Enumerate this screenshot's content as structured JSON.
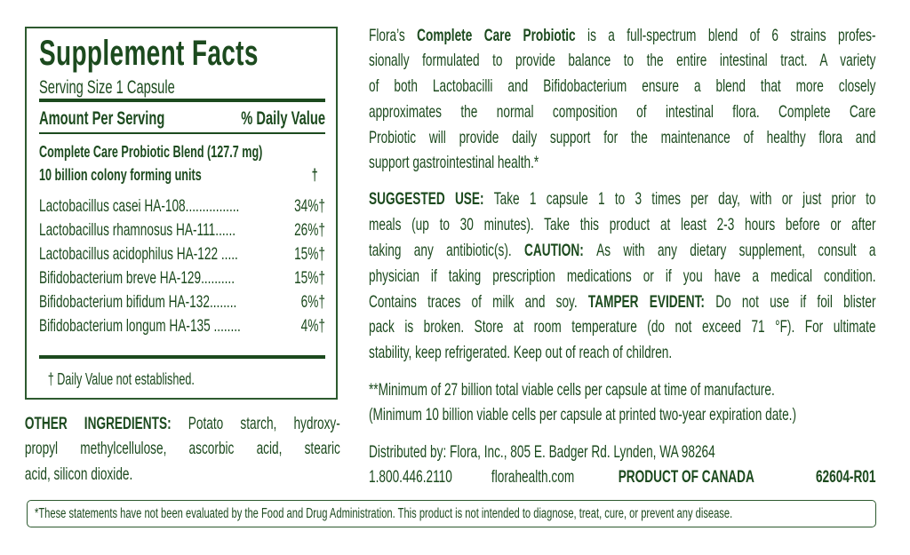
{
  "colors": {
    "text": "#1c4a1e",
    "border": "#2d5a2f"
  },
  "facts": {
    "title": "Supplement Facts",
    "serving_size": "Serving Size 1 Capsule",
    "amount_header": "Amount Per Serving",
    "dv_header": "% Daily Value",
    "blend_name": "Complete Care Probiotic Blend (127.7 mg)",
    "blend_units": "10 billion colony forming units",
    "blend_dv": "†",
    "strains": [
      {
        "name": "Lactobacillus casei HA-108................",
        "dv": "34%†"
      },
      {
        "name": "Lactobacillus rhamnosus HA-111......",
        "dv": "26%†"
      },
      {
        "name": "Lactobacillus acidophilus HA-122 .....",
        "dv": "15%†"
      },
      {
        "name": "Bifidobacterium breve HA-129..........",
        "dv": "15%†"
      },
      {
        "name": "Bifidobacterium bifidum HA-132........",
        "dv": "6%†"
      },
      {
        "name": "Bifidobacterium longum HA-135 ........",
        "dv": "4%†"
      }
    ],
    "footnote": "† Daily Value not established."
  },
  "other_ingredients": [
    [
      {
        "b": true,
        "t": "OTHER INGREDIENTS: "
      },
      {
        "t": "Potato starch, hydroxy-"
      }
    ],
    [
      {
        "t": "propyl methylcellulose, ascorbic acid, stearic"
      }
    ],
    [
      {
        "t": "acid, silicon dioxide."
      }
    ]
  ],
  "description": [
    [
      {
        "t": "Flora’s "
      },
      {
        "b": true,
        "t": "Complete Care Probiotic"
      },
      {
        "t": " is a full-spectrum blend of 6 strains profes-"
      }
    ],
    [
      {
        "t": "sionally formulated to provide balance to the entire intestinal tract. A variety"
      }
    ],
    [
      {
        "t": "of both Lactobacilli and Bifidobacterium ensure a blend that more closely"
      }
    ],
    [
      {
        "t": "approximates the normal composition of intestinal flora. Complete Care"
      }
    ],
    [
      {
        "t": "Probiotic will provide daily support for the maintenance of healthy flora and"
      }
    ],
    [
      {
        "t": "support gastrointestinal health.*"
      }
    ]
  ],
  "usage": [
    [
      {
        "b": true,
        "t": "SUGGESTED USE: "
      },
      {
        "t": "Take 1 capsule 1 to 3 times per day, with or just prior to"
      }
    ],
    [
      {
        "t": "meals (up to 30 minutes). Take this product at least 2-3 hours before or after"
      }
    ],
    [
      {
        "t": "taking any antibiotic(s). "
      },
      {
        "b": true,
        "t": "CAUTION: "
      },
      {
        "t": "As with any dietary supplement, consult a"
      }
    ],
    [
      {
        "t": "physician if taking prescription medications or if you have a medical condition."
      }
    ],
    [
      {
        "t": "Contains traces of milk and soy.  "
      },
      {
        "b": true,
        "t": "TAMPER EVIDENT: "
      },
      {
        "t": "Do not use if foil blister"
      }
    ],
    [
      {
        "t": "pack is broken. Store at room temperature (do not exceed 71 °F). For ultimate"
      }
    ],
    [
      {
        "t": "stability, keep refrigerated. Keep out of reach of children."
      }
    ]
  ],
  "viable_cells": [
    [
      {
        "t": "**Minimum of 27 billion total viable cells per capsule at time of manufacture."
      }
    ],
    [
      {
        "t": "(Minimum 10 billion viable cells per capsule at printed two-year expiration date.)"
      }
    ]
  ],
  "distributor": {
    "line": "Distributed by: Flora, Inc., 805 E. Badger Rd. Lynden, WA 98264",
    "phone": "1.800.446.2110",
    "website": "florahealth.com",
    "origin": "PRODUCT OF CANADA",
    "code": "62604-R01"
  },
  "disclaimer": "*These statements have not been evaluated by the Food and Drug Administration. This product is not intended to diagnose, treat, cure, or prevent any disease."
}
